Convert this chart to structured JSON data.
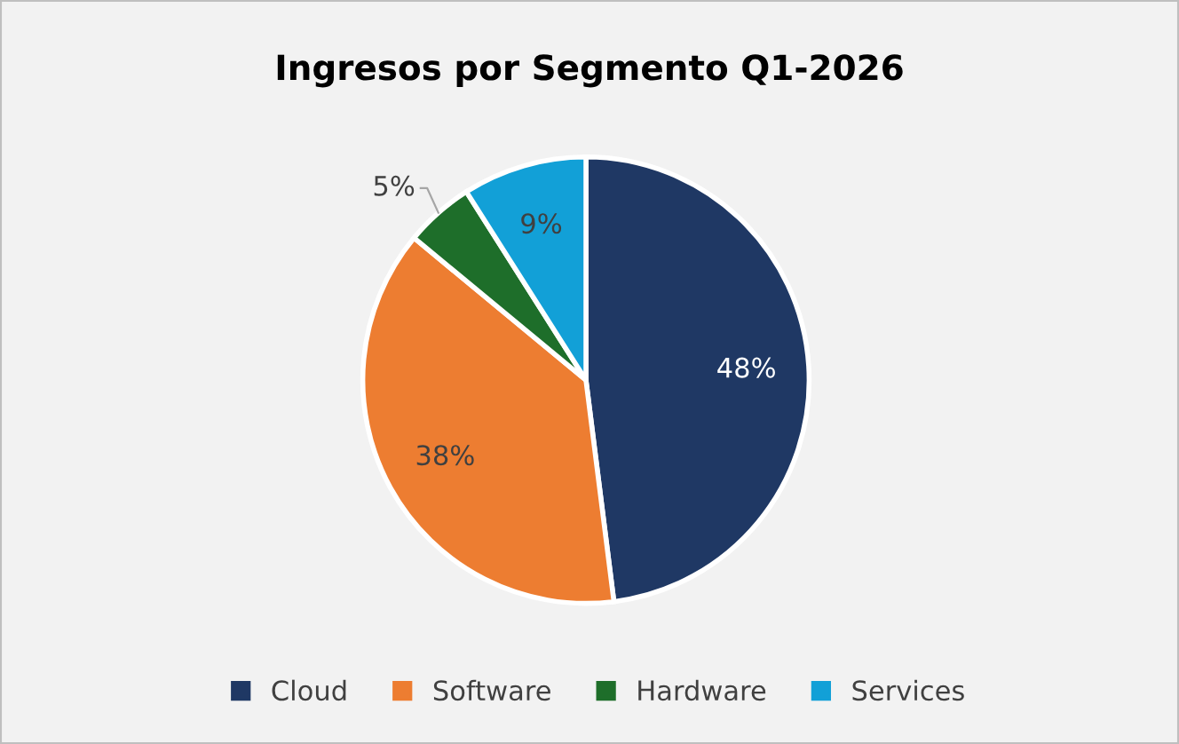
{
  "chart_data": {
    "type": "pie",
    "title": "Ingresos por Segmento Q1-2026",
    "categories": [
      "Cloud",
      "Software",
      "Hardware",
      "Services"
    ],
    "values": [
      48,
      38,
      5,
      9
    ],
    "colors": [
      "#1f3864",
      "#ed7d31",
      "#1e6e2a",
      "#12a0d7"
    ],
    "value_labels": [
      "48%",
      "38%",
      "5%",
      "9%"
    ],
    "legend": "bottom"
  }
}
